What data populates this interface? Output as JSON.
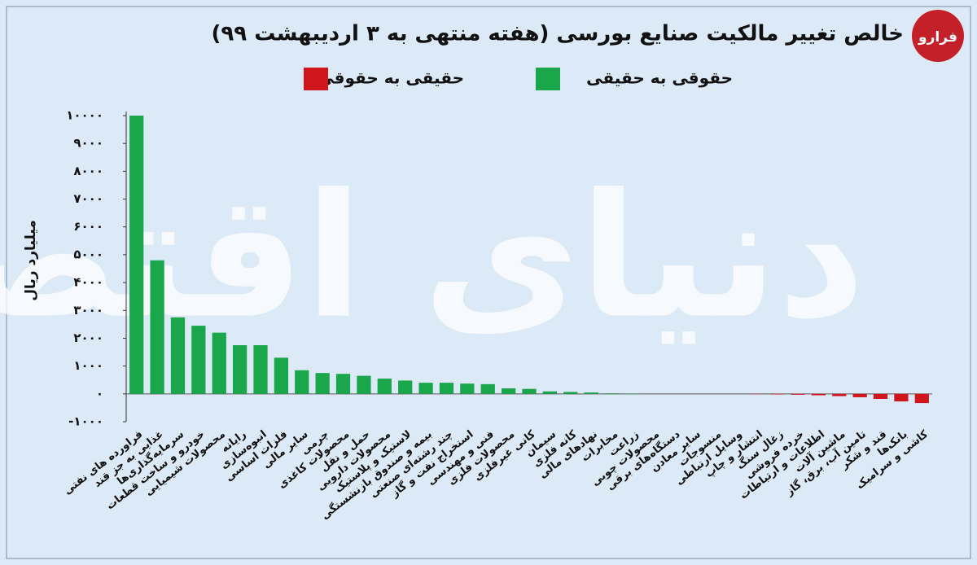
{
  "chart_data": {
    "type": "bar",
    "title": "خالص تغییر مالکیت صنایع بورسی (هفته منتهی به ۳ اردیبهشت ۹۹)",
    "logo": "فرارو",
    "watermark": "دنیای اقتصاد",
    "y_label": "میلیارد ریال",
    "categories": [
      "فراورده های نفتی",
      "غذایی به جز قند",
      "سرمایه‌گذاری‌ها",
      "خودرو و ساخت قطعات",
      "محصولات شیمیایی",
      "رایانه",
      "انبوه‌سازی",
      "فلزات اساسی",
      "سایر مالی",
      "چرمی",
      "محصولات کاغذی",
      "حمل و نقل",
      "محصولات دارویی",
      "لاستیک و پلاستیک",
      "بیمه و صندوق بازنشستگی",
      "چند رشته‌ای صنعتی",
      "استخراج نفت و گاز",
      "فنی و مهندسی",
      "محصولات فلزی",
      "کانی غیرفلزی",
      "سیمان",
      "کانه فلزی",
      "نهادهای مالی",
      "مخابرات",
      "زراعت",
      "محصولات چوبی",
      "دستگاه‌های برقی",
      "سایر معادن",
      "منسوجات",
      "وسایل ارتباطی",
      "انتشار و چاپ",
      "زغال سنگ",
      "خرده فروشی",
      "اطلاعات و ارتباطات",
      "ماشین آلات",
      "تامین آب، برق، گاز",
      "قند و شکر",
      "بانک‌ها",
      "کاشی و سرامیک"
    ],
    "series": [
      {
        "name": "حقوقی به حقیقی",
        "color": "#1aa64a",
        "values": [
          10000,
          4800,
          2750,
          2450,
          2200,
          1750,
          1750,
          1300,
          850,
          750,
          720,
          650,
          550,
          480,
          400,
          400,
          370,
          350,
          200,
          180,
          90,
          70,
          50,
          20,
          10,
          0,
          0,
          0,
          0,
          0,
          null,
          null,
          null,
          null,
          null,
          null,
          null,
          null,
          null
        ]
      },
      {
        "name": "حقیقی به حقوقی",
        "color": "#d0151d",
        "values": [
          null,
          null,
          null,
          null,
          null,
          null,
          null,
          null,
          null,
          null,
          null,
          null,
          null,
          null,
          null,
          null,
          null,
          null,
          null,
          null,
          null,
          null,
          null,
          null,
          null,
          null,
          null,
          null,
          null,
          null,
          -10,
          -20,
          -30,
          -50,
          -80,
          -120,
          -180,
          -270,
          -330
        ]
      }
    ],
    "ylim": [
      -1000,
      10000
    ],
    "yticks": [
      {
        "value": -1000,
        "label": "-۱۰۰۰"
      },
      {
        "value": 0,
        "label": "۰"
      },
      {
        "value": 1000,
        "label": "۱۰۰۰"
      },
      {
        "value": 2000,
        "label": "۲۰۰۰"
      },
      {
        "value": 3000,
        "label": "۳۰۰۰"
      },
      {
        "value": 4000,
        "label": "۴۰۰۰"
      },
      {
        "value": 5000,
        "label": "۵۰۰۰"
      },
      {
        "value": 6000,
        "label": "۶۰۰۰"
      },
      {
        "value": 7000,
        "label": "۷۰۰۰"
      },
      {
        "value": 8000,
        "label": "۸۰۰۰"
      },
      {
        "value": 9000,
        "label": "۹۰۰۰"
      },
      {
        "value": 10000,
        "label": "۱۰۰۰۰"
      }
    ],
    "grid": false
  }
}
